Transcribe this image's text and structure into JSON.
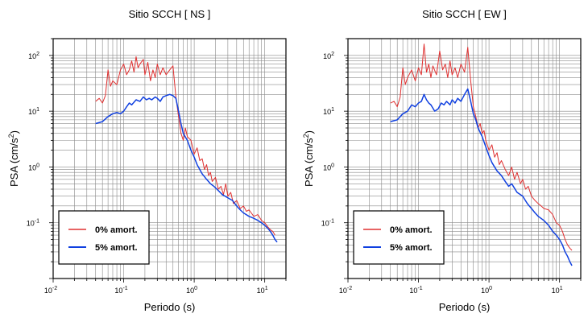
{
  "chart_data": [
    {
      "type": "line",
      "title": "Sitio SCCH [ NS ]",
      "xlabel": "Periodo (s)",
      "ylabel_main": "PSA (cm/s",
      "ylabel_sup": "2",
      "ylabel_tail": ")",
      "xscale": "log",
      "yscale": "log",
      "xlim": [
        0.01,
        20
      ],
      "ylim": [
        0.01,
        200
      ],
      "grid": true,
      "legend_position": "bottom-left",
      "x_ticks": [
        {
          "value": 0.01,
          "base": "10",
          "exp": "-2"
        },
        {
          "value": 0.1,
          "base": "10",
          "exp": "-1"
        },
        {
          "value": 1,
          "base": "10",
          "exp": "0"
        },
        {
          "value": 10,
          "base": "10",
          "exp": "1"
        }
      ],
      "y_ticks": [
        {
          "value": 0.1,
          "base": "10",
          "exp": "-1"
        },
        {
          "value": 1,
          "base": "10",
          "exp": "0"
        },
        {
          "value": 10,
          "base": "10",
          "exp": "1"
        },
        {
          "value": 100,
          "base": "10",
          "exp": "2"
        }
      ],
      "series": [
        {
          "name": "0% amort.",
          "color": "#e03030",
          "points": [
            [
              0.04,
              15
            ],
            [
              0.045,
              17
            ],
            [
              0.05,
              14
            ],
            [
              0.055,
              19
            ],
            [
              0.06,
              55
            ],
            [
              0.065,
              28
            ],
            [
              0.07,
              35
            ],
            [
              0.08,
              30
            ],
            [
              0.09,
              55
            ],
            [
              0.1,
              70
            ],
            [
              0.11,
              45
            ],
            [
              0.12,
              55
            ],
            [
              0.13,
              80
            ],
            [
              0.14,
              50
            ],
            [
              0.15,
              95
            ],
            [
              0.16,
              60
            ],
            [
              0.17,
              70
            ],
            [
              0.19,
              85
            ],
            [
              0.2,
              45
            ],
            [
              0.22,
              75
            ],
            [
              0.24,
              35
            ],
            [
              0.26,
              55
            ],
            [
              0.28,
              40
            ],
            [
              0.3,
              70
            ],
            [
              0.33,
              45
            ],
            [
              0.36,
              60
            ],
            [
              0.4,
              45
            ],
            [
              0.45,
              55
            ],
            [
              0.5,
              65
            ],
            [
              0.55,
              18
            ],
            [
              0.6,
              8
            ],
            [
              0.65,
              4
            ],
            [
              0.7,
              3
            ],
            [
              0.75,
              5
            ],
            [
              0.8,
              3.5
            ],
            [
              0.9,
              3
            ],
            [
              1.0,
              1.7
            ],
            [
              1.1,
              2.2
            ],
            [
              1.2,
              1.3
            ],
            [
              1.3,
              1.4
            ],
            [
              1.4,
              0.9
            ],
            [
              1.5,
              1.1
            ],
            [
              1.6,
              0.7
            ],
            [
              1.7,
              0.8
            ],
            [
              1.8,
              0.55
            ],
            [
              2.0,
              0.65
            ],
            [
              2.2,
              0.4
            ],
            [
              2.4,
              0.45
            ],
            [
              2.6,
              0.32
            ],
            [
              2.8,
              0.5
            ],
            [
              3.0,
              0.3
            ],
            [
              3.3,
              0.35
            ],
            [
              3.6,
              0.22
            ],
            [
              4.0,
              0.25
            ],
            [
              4.5,
              0.18
            ],
            [
              5.0,
              0.2
            ],
            [
              5.5,
              0.16
            ],
            [
              6.0,
              0.17
            ],
            [
              7.0,
              0.13
            ],
            [
              8.0,
              0.14
            ],
            [
              9.0,
              0.11
            ],
            [
              10.0,
              0.1
            ],
            [
              11.0,
              0.085
            ],
            [
              12.0,
              0.075
            ],
            [
              13.0,
              0.07
            ],
            [
              14.0,
              0.06
            ]
          ]
        },
        {
          "name": "5% amort.",
          "color": "#1040e0",
          "points": [
            [
              0.04,
              6
            ],
            [
              0.05,
              6.5
            ],
            [
              0.06,
              8
            ],
            [
              0.07,
              9
            ],
            [
              0.08,
              9.5
            ],
            [
              0.09,
              9
            ],
            [
              0.1,
              10
            ],
            [
              0.11,
              12
            ],
            [
              0.12,
              14
            ],
            [
              0.13,
              13
            ],
            [
              0.15,
              16
            ],
            [
              0.17,
              15
            ],
            [
              0.19,
              18
            ],
            [
              0.21,
              16
            ],
            [
              0.23,
              17
            ],
            [
              0.25,
              16
            ],
            [
              0.28,
              18
            ],
            [
              0.3,
              17
            ],
            [
              0.33,
              15
            ],
            [
              0.36,
              18
            ],
            [
              0.4,
              19
            ],
            [
              0.45,
              20
            ],
            [
              0.5,
              19
            ],
            [
              0.55,
              17
            ],
            [
              0.6,
              10
            ],
            [
              0.65,
              6
            ],
            [
              0.7,
              4
            ],
            [
              0.8,
              3
            ],
            [
              0.9,
              2
            ],
            [
              1.0,
              1.5
            ],
            [
              1.1,
              1.1
            ],
            [
              1.2,
              0.9
            ],
            [
              1.3,
              0.75
            ],
            [
              1.5,
              0.6
            ],
            [
              1.7,
              0.5
            ],
            [
              1.9,
              0.45
            ],
            [
              2.1,
              0.4
            ],
            [
              2.5,
              0.32
            ],
            [
              3.0,
              0.28
            ],
            [
              3.5,
              0.25
            ],
            [
              4.0,
              0.2
            ],
            [
              4.5,
              0.17
            ],
            [
              5.0,
              0.15
            ],
            [
              6.0,
              0.13
            ],
            [
              7.0,
              0.12
            ],
            [
              8.0,
              0.11
            ],
            [
              9.0,
              0.1
            ],
            [
              10.0,
              0.09
            ],
            [
              11.0,
              0.08
            ],
            [
              12.0,
              0.07
            ],
            [
              13.0,
              0.06
            ],
            [
              14.0,
              0.05
            ],
            [
              15.0,
              0.045
            ]
          ]
        }
      ]
    },
    {
      "type": "line",
      "title": "Sitio SCCH [ EW ]",
      "xlabel": "Periodo (s)",
      "ylabel_main": "PSA (cm/s",
      "ylabel_sup": "2",
      "ylabel_tail": ")",
      "xscale": "log",
      "yscale": "log",
      "xlim": [
        0.01,
        20
      ],
      "ylim": [
        0.01,
        200
      ],
      "grid": true,
      "legend_position": "bottom-left",
      "x_ticks": [
        {
          "value": 0.01,
          "base": "10",
          "exp": "-2"
        },
        {
          "value": 0.1,
          "base": "10",
          "exp": "-1"
        },
        {
          "value": 1,
          "base": "10",
          "exp": "0"
        },
        {
          "value": 10,
          "base": "10",
          "exp": "1"
        }
      ],
      "y_ticks": [
        {
          "value": 0.1,
          "base": "10",
          "exp": "-1"
        },
        {
          "value": 1,
          "base": "10",
          "exp": "0"
        },
        {
          "value": 10,
          "base": "10",
          "exp": "1"
        },
        {
          "value": 100,
          "base": "10",
          "exp": "2"
        }
      ],
      "series": [
        {
          "name": "0% amort.",
          "color": "#e03030",
          "points": [
            [
              0.04,
              14
            ],
            [
              0.045,
              15
            ],
            [
              0.05,
              12
            ],
            [
              0.055,
              18
            ],
            [
              0.06,
              60
            ],
            [
              0.065,
              30
            ],
            [
              0.07,
              40
            ],
            [
              0.08,
              55
            ],
            [
              0.09,
              35
            ],
            [
              0.1,
              60
            ],
            [
              0.11,
              45
            ],
            [
              0.12,
              160
            ],
            [
              0.13,
              50
            ],
            [
              0.14,
              70
            ],
            [
              0.15,
              40
            ],
            [
              0.16,
              65
            ],
            [
              0.18,
              45
            ],
            [
              0.2,
              120
            ],
            [
              0.22,
              55
            ],
            [
              0.24,
              70
            ],
            [
              0.26,
              40
            ],
            [
              0.28,
              80
            ],
            [
              0.3,
              45
            ],
            [
              0.33,
              60
            ],
            [
              0.36,
              40
            ],
            [
              0.4,
              70
            ],
            [
              0.45,
              50
            ],
            [
              0.5,
              140
            ],
            [
              0.55,
              35
            ],
            [
              0.6,
              12
            ],
            [
              0.65,
              8
            ],
            [
              0.7,
              5
            ],
            [
              0.75,
              6
            ],
            [
              0.8,
              4
            ],
            [
              0.85,
              4.5
            ],
            [
              0.9,
              3
            ],
            [
              1.0,
              2
            ],
            [
              1.1,
              2.5
            ],
            [
              1.2,
              1.5
            ],
            [
              1.3,
              1.8
            ],
            [
              1.4,
              1.1
            ],
            [
              1.5,
              1.3
            ],
            [
              1.7,
              0.9
            ],
            [
              1.9,
              0.7
            ],
            [
              2.1,
              1.0
            ],
            [
              2.3,
              0.6
            ],
            [
              2.5,
              0.8
            ],
            [
              2.8,
              0.5
            ],
            [
              3.0,
              0.6
            ],
            [
              3.3,
              0.4
            ],
            [
              3.6,
              0.45
            ],
            [
              4.0,
              0.3
            ],
            [
              4.5,
              0.25
            ],
            [
              5.0,
              0.22
            ],
            [
              5.5,
              0.2
            ],
            [
              6.0,
              0.18
            ],
            [
              7.0,
              0.17
            ],
            [
              8.0,
              0.14
            ],
            [
              9.0,
              0.1
            ],
            [
              10.0,
              0.09
            ],
            [
              11.0,
              0.07
            ],
            [
              12.0,
              0.05
            ],
            [
              13.0,
              0.04
            ],
            [
              14.0,
              0.035
            ],
            [
              15.0,
              0.032
            ]
          ]
        },
        {
          "name": "5% amort.",
          "color": "#1040e0",
          "points": [
            [
              0.04,
              6.5
            ],
            [
              0.05,
              7
            ],
            [
              0.06,
              9
            ],
            [
              0.07,
              10
            ],
            [
              0.08,
              13
            ],
            [
              0.09,
              12
            ],
            [
              0.1,
              14
            ],
            [
              0.11,
              15
            ],
            [
              0.12,
              20
            ],
            [
              0.13,
              16
            ],
            [
              0.14,
              14
            ],
            [
              0.15,
              13
            ],
            [
              0.17,
              10
            ],
            [
              0.19,
              11
            ],
            [
              0.21,
              14
            ],
            [
              0.23,
              13
            ],
            [
              0.25,
              15
            ],
            [
              0.28,
              13
            ],
            [
              0.3,
              16
            ],
            [
              0.33,
              14
            ],
            [
              0.36,
              17
            ],
            [
              0.4,
              15
            ],
            [
              0.45,
              20
            ],
            [
              0.5,
              25
            ],
            [
              0.55,
              15
            ],
            [
              0.6,
              9
            ],
            [
              0.65,
              7
            ],
            [
              0.7,
              5
            ],
            [
              0.8,
              3.5
            ],
            [
              0.9,
              2.3
            ],
            [
              1.0,
              1.6
            ],
            [
              1.1,
              1.2
            ],
            [
              1.2,
              1.0
            ],
            [
              1.3,
              0.85
            ],
            [
              1.5,
              0.7
            ],
            [
              1.7,
              0.55
            ],
            [
              1.9,
              0.45
            ],
            [
              2.1,
              0.5
            ],
            [
              2.5,
              0.35
            ],
            [
              3.0,
              0.3
            ],
            [
              3.5,
              0.22
            ],
            [
              4.0,
              0.18
            ],
            [
              4.5,
              0.15
            ],
            [
              5.0,
              0.13
            ],
            [
              6.0,
              0.11
            ],
            [
              7.0,
              0.09
            ],
            [
              8.0,
              0.07
            ],
            [
              9.0,
              0.06
            ],
            [
              10.0,
              0.05
            ],
            [
              11.0,
              0.04
            ],
            [
              12.0,
              0.03
            ],
            [
              13.0,
              0.025
            ],
            [
              14.0,
              0.02
            ],
            [
              15.0,
              0.017
            ]
          ]
        }
      ]
    }
  ]
}
